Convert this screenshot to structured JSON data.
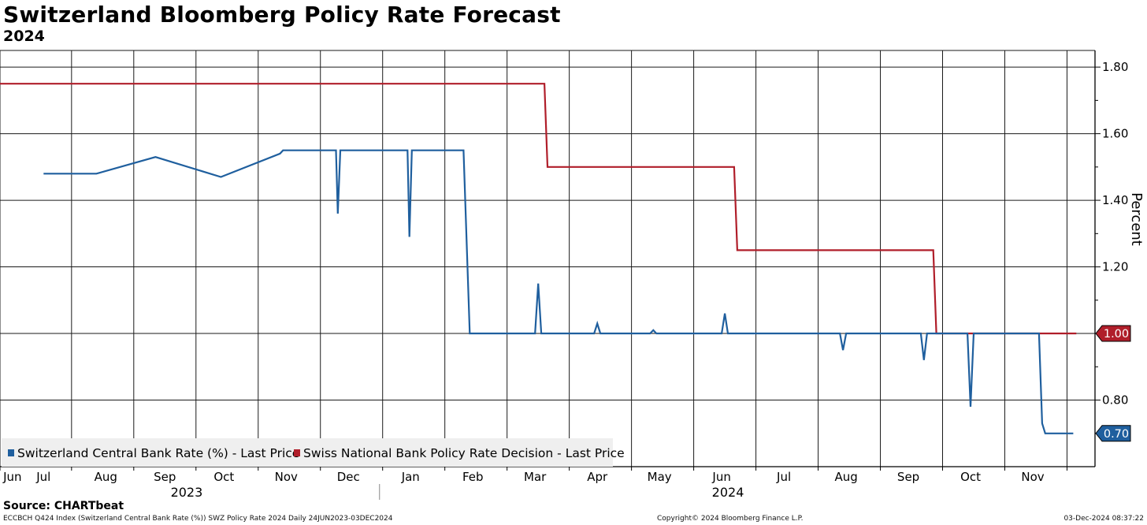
{
  "title": "Switzerland Bloomberg Policy Rate Forecast",
  "subtitle": "2024",
  "source": "Source: CHARTbeat",
  "footer": {
    "left": "ECCBCH Q424 Index (Switzerland Central Bank Rate (%)) SWZ Policy Rate 2024  Daily 24JUN2023-03DEC2024",
    "center": "Copyright© 2024 Bloomberg Finance L.P.",
    "right": "03-Dec-2024 08:37:22"
  },
  "colors": {
    "blue": "#1f5f9e",
    "red": "#b01e2a",
    "grid": "#1a1a1a",
    "legend_bg": "#efefef"
  },
  "chart_data": {
    "type": "line",
    "title": "Switzerland Bloomberg Policy Rate Forecast",
    "subtitle": "2024",
    "ylabel": "Percent",
    "ylim": [
      0.6,
      1.85
    ],
    "yticks": [
      0.8,
      1.0,
      1.2,
      1.4,
      1.6,
      1.8
    ],
    "ytick_labels": [
      "0.80",
      "1.00",
      "1.20",
      "1.40",
      "1.60",
      "1.80"
    ],
    "x_index_range": [
      0,
      17.6
    ],
    "xtick_labels": [
      "Jun",
      "Jul",
      "Aug",
      "Sep",
      "Oct",
      "Nov",
      "Dec",
      "Jan",
      "Feb",
      "Mar",
      "Apr",
      "May",
      "Jun",
      "Jul",
      "Aug",
      "Sep",
      "Oct",
      "Nov"
    ],
    "xtick_positions": [
      0.2,
      0.7,
      1.7,
      2.65,
      3.6,
      4.6,
      5.6,
      6.6,
      7.6,
      8.6,
      9.6,
      10.6,
      11.6,
      12.6,
      13.6,
      14.6,
      15.6,
      16.6
    ],
    "vgrid_positions": [
      0.0,
      1.15,
      2.15,
      3.15,
      4.15,
      5.15,
      6.15,
      7.15,
      8.15,
      9.15,
      10.15,
      11.15,
      12.15,
      13.15,
      14.15,
      15.15,
      16.15,
      17.15
    ],
    "year_labels": [
      {
        "label": "2023",
        "x": 3.0
      },
      {
        "label": "2024",
        "x": 11.7
      }
    ],
    "year_divider_x": 6.1,
    "legend": [
      "Switzerland Central Bank Rate (%) - Last Price",
      "Swiss National Bank Policy Rate Decision - Last Price"
    ],
    "last_value_labels": [
      {
        "series": "Swiss National Bank Policy Rate Decision - Last Price",
        "value": 1.0,
        "label": "1.00",
        "color": "#b01e2a"
      },
      {
        "series": "Switzerland Central Bank Rate (%) - Last Price",
        "value": 0.7,
        "label": "0.70",
        "color": "#1f5f9e"
      }
    ],
    "series": [
      {
        "name": "Swiss National Bank Policy Rate Decision - Last Price",
        "color": "#b01e2a",
        "x": [
          0.0,
          8.75,
          8.8,
          11.8,
          11.85,
          15.0,
          15.05,
          17.3
        ],
        "values": [
          1.75,
          1.75,
          1.5,
          1.5,
          1.25,
          1.25,
          1.0,
          1.0
        ]
      },
      {
        "name": "Switzerland Central Bank Rate (%) - Last Price",
        "color": "#1f5f9e",
        "x": [
          0.7,
          1.55,
          2.5,
          3.55,
          4.5,
          4.55,
          5.4,
          5.43,
          5.47,
          6.55,
          6.58,
          6.62,
          7.45,
          7.55,
          8.6,
          8.65,
          8.7,
          9.55,
          9.6,
          9.65,
          10.45,
          10.5,
          10.55,
          11.6,
          11.65,
          11.7,
          13.5,
          13.55,
          13.6,
          14.8,
          14.85,
          14.9,
          15.55,
          15.6,
          15.65,
          16.7,
          16.75,
          16.8,
          17.25
        ],
        "values": [
          1.48,
          1.48,
          1.53,
          1.47,
          1.54,
          1.55,
          1.55,
          1.36,
          1.55,
          1.55,
          1.29,
          1.55,
          1.55,
          1.0,
          1.0,
          1.15,
          1.0,
          1.0,
          1.03,
          1.0,
          1.0,
          1.01,
          1.0,
          1.0,
          1.06,
          1.0,
          1.0,
          0.95,
          1.0,
          1.0,
          0.92,
          1.0,
          1.0,
          0.78,
          1.0,
          1.0,
          0.73,
          0.7,
          0.7
        ]
      }
    ]
  }
}
